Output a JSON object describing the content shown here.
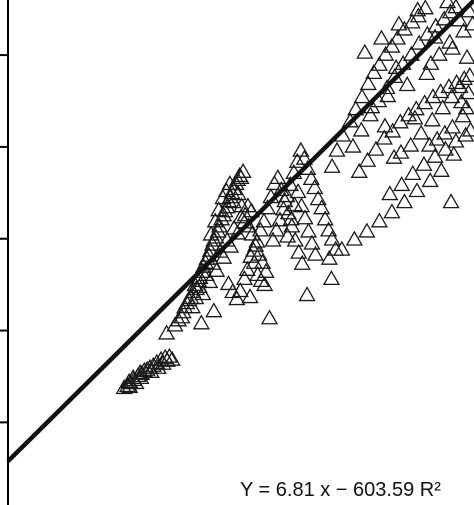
{
  "chart_data": {
    "type": "scatter",
    "marker": "hollow-triangle",
    "colors": {
      "marker": "#1a1a1a",
      "fit_line": "#111111",
      "axis": "#000000"
    },
    "xlim": [
      95,
      162
    ],
    "ylim": [
      0,
      500
    ],
    "axis": {
      "left_spine": true,
      "tick_count": 5,
      "tick_labels_visible": false
    },
    "fit_line": {
      "slope": 6.81,
      "intercept": -603.59
    },
    "equation_text": "Y = 6.81 x − 603.59   R²",
    "series": [
      {
        "points": [
          [
            112.2,
            118
          ],
          [
            112.4,
            122
          ],
          [
            112.5,
            117
          ],
          [
            112.6,
            121
          ],
          [
            113.0,
            126
          ],
          [
            113.1,
            124
          ],
          [
            113.7,
            128
          ],
          [
            114.0,
            131
          ],
          [
            114.1,
            126
          ],
          [
            114.2,
            130
          ],
          [
            114.6,
            133
          ],
          [
            115.0,
            134
          ],
          [
            115.4,
            136
          ],
          [
            115.6,
            132
          ],
          [
            115.9,
            138
          ],
          [
            116.4,
            141
          ],
          [
            116.6,
            136
          ],
          [
            117.0,
            144
          ],
          [
            117.3,
            140
          ],
          [
            117.6,
            146
          ],
          [
            117.9,
            143
          ],
          [
            118.2,
            147
          ],
          [
            118.6,
            144
          ],
          [
            111.7,
            116
          ],
          [
            113.4,
            121
          ],
          [
            117.8,
            170
          ],
          [
            119.0,
            178
          ],
          [
            119.5,
            183
          ],
          [
            120.0,
            186
          ],
          [
            120.2,
            191
          ],
          [
            120.4,
            196
          ],
          [
            120.7,
            200
          ],
          [
            121.0,
            203
          ],
          [
            121.3,
            205
          ],
          [
            121.6,
            211
          ],
          [
            121.9,
            218
          ],
          [
            122.1,
            214
          ],
          [
            122.4,
            222
          ],
          [
            122.6,
            225
          ],
          [
            122.9,
            231
          ],
          [
            123.1,
            236
          ],
          [
            123.4,
            240
          ],
          [
            123.6,
            244
          ],
          [
            123.9,
            247
          ],
          [
            124.1,
            252
          ],
          [
            124.4,
            258
          ],
          [
            124.6,
            262
          ],
          [
            124.9,
            265
          ],
          [
            125.2,
            271
          ],
          [
            125.4,
            276
          ],
          [
            125.7,
            283
          ],
          [
            126.0,
            287
          ],
          [
            126.2,
            291
          ],
          [
            126.5,
            295
          ],
          [
            126.7,
            301
          ],
          [
            127.0,
            305
          ],
          [
            127.2,
            309
          ],
          [
            127.5,
            313
          ],
          [
            127.8,
            318
          ],
          [
            128.0,
            322
          ],
          [
            128.3,
            326
          ],
          [
            128.5,
            324
          ],
          [
            128.8,
            330
          ],
          [
            121.5,
            196
          ],
          [
            122.0,
            205
          ],
          [
            122.5,
            216
          ],
          [
            123.0,
            209
          ],
          [
            123.5,
            228
          ],
          [
            124.0,
            221
          ],
          [
            124.5,
            239
          ],
          [
            125.0,
            232
          ],
          [
            125.5,
            251
          ],
          [
            126.0,
            245
          ],
          [
            126.5,
            262
          ],
          [
            127.0,
            256
          ],
          [
            127.5,
            274
          ],
          [
            128.0,
            269
          ],
          [
            128.5,
            285
          ],
          [
            129.0,
            280
          ],
          [
            129.5,
            296
          ],
          [
            130.0,
            291
          ],
          [
            124.2,
            268
          ],
          [
            124.8,
            281
          ],
          [
            125.3,
            292
          ],
          [
            125.9,
            304
          ],
          [
            126.4,
            311
          ],
          [
            126.9,
            318
          ],
          [
            127.4,
            300
          ],
          [
            128.1,
            308
          ],
          [
            128.6,
            296
          ],
          [
            129.1,
            287
          ],
          [
            129.6,
            276
          ],
          [
            130.1,
            268
          ],
          [
            130.6,
            257
          ],
          [
            131.1,
            248
          ],
          [
            131.6,
            240
          ],
          [
            132.1,
            231
          ],
          [
            130.4,
            240
          ],
          [
            130.9,
            228
          ],
          [
            131.4,
            222
          ],
          [
            131.9,
            218
          ],
          [
            126.7,
            219
          ],
          [
            127.3,
            211
          ],
          [
            127.9,
            204
          ],
          [
            128.4,
            212
          ],
          [
            129.0,
            224
          ],
          [
            129.4,
            233
          ],
          [
            129.9,
            246
          ],
          [
            130.3,
            252
          ],
          [
            130.8,
            261
          ],
          [
            131.3,
            272
          ],
          [
            131.8,
            281
          ],
          [
            132.3,
            294
          ],
          [
            132.8,
            305
          ],
          [
            133.3,
            318
          ],
          [
            133.8,
            324
          ],
          [
            134.3,
            312
          ],
          [
            134.8,
            301
          ],
          [
            135.3,
            289
          ],
          [
            135.8,
            276
          ],
          [
            136.3,
            262
          ],
          [
            136.8,
            250
          ],
          [
            137.3,
            239
          ],
          [
            133.1,
            262
          ],
          [
            133.6,
            272
          ],
          [
            134.1,
            282
          ],
          [
            134.6,
            293
          ],
          [
            135.1,
            306
          ],
          [
            135.6,
            317
          ],
          [
            136.1,
            329
          ],
          [
            136.6,
            340
          ],
          [
            137.1,
            351
          ],
          [
            137.6,
            343
          ],
          [
            138.1,
            333
          ],
          [
            138.6,
            323
          ],
          [
            139.1,
            314
          ],
          [
            139.6,
            303
          ],
          [
            140.1,
            294
          ],
          [
            140.6,
            283
          ],
          [
            141.1,
            272
          ],
          [
            141.6,
            263
          ],
          [
            142.1,
            253
          ],
          [
            135.2,
            266
          ],
          [
            135.7,
            283
          ],
          [
            136.2,
            297
          ],
          [
            136.7,
            310
          ],
          [
            137.2,
            296
          ],
          [
            137.7,
            284
          ],
          [
            138.2,
            271
          ],
          [
            138.7,
            259
          ],
          [
            139.2,
            248
          ],
          [
            129.8,
            206
          ],
          [
            132.6,
            185
          ],
          [
            122.8,
            180
          ],
          [
            124.6,
            192
          ],
          [
            141.6,
            335
          ],
          [
            142.3,
            351
          ],
          [
            143.1,
            366
          ],
          [
            144.2,
            380
          ],
          [
            145.0,
            392
          ],
          [
            145.9,
            404
          ],
          [
            146.8,
            417
          ],
          [
            147.6,
            428
          ],
          [
            148.4,
            436
          ],
          [
            149.3,
            446
          ],
          [
            150.2,
            454
          ],
          [
            151.0,
            462
          ],
          [
            152.0,
            471
          ],
          [
            153.1,
            478
          ],
          [
            154.0,
            484
          ],
          [
            155.0,
            492
          ],
          [
            144.6,
            355
          ],
          [
            145.8,
            371
          ],
          [
            147.1,
            386
          ],
          [
            148.3,
            400
          ],
          [
            149.5,
            413
          ],
          [
            150.6,
            424
          ],
          [
            151.8,
            437
          ],
          [
            153.0,
            446
          ],
          [
            154.1,
            457
          ],
          [
            155.3,
            466
          ],
          [
            156.5,
            474
          ],
          [
            157.7,
            481
          ],
          [
            158.6,
            488
          ],
          [
            159.4,
            493
          ],
          [
            145.5,
            330
          ],
          [
            146.7,
            341
          ],
          [
            147.9,
            352
          ],
          [
            149.1,
            363
          ],
          [
            150.3,
            370
          ],
          [
            151.4,
            379
          ],
          [
            152.6,
            386
          ],
          [
            153.7,
            392
          ],
          [
            154.9,
            398
          ],
          [
            156.1,
            404
          ],
          [
            157.2,
            409
          ],
          [
            158.4,
            414
          ],
          [
            159.5,
            418
          ],
          [
            160.6,
            422
          ],
          [
            155.6,
            356
          ],
          [
            156.7,
            362
          ],
          [
            157.8,
            368
          ],
          [
            158.9,
            374
          ],
          [
            149.9,
            308
          ],
          [
            151.6,
            317
          ],
          [
            153.2,
            328
          ],
          [
            154.8,
            337
          ],
          [
            156.4,
            345
          ],
          [
            157.9,
            352
          ],
          [
            159.4,
            360
          ],
          [
            160.8,
            366
          ],
          [
            161.5,
            371
          ],
          [
            160.2,
            399
          ],
          [
            161.2,
            408
          ],
          [
            160.9,
            393
          ],
          [
            146.3,
            448
          ],
          [
            148.7,
            462
          ],
          [
            151.2,
            476
          ],
          [
            153.9,
            490
          ],
          [
            156.4,
            463
          ],
          [
            158.9,
            452
          ],
          [
            161.0,
            443
          ],
          [
            155.2,
            427
          ],
          [
            152.4,
            416
          ],
          [
            149.6,
            405
          ],
          [
            147.3,
            394
          ],
          [
            150.8,
            433
          ],
          [
            160.4,
            385
          ],
          [
            159.1,
            347
          ],
          [
            157.3,
            331
          ],
          [
            155.7,
            321
          ],
          [
            153.8,
            311
          ],
          [
            152.0,
            300
          ],
          [
            150.2,
            290
          ],
          [
            148.4,
            281
          ],
          [
            146.6,
            271
          ],
          [
            144.8,
            263
          ],
          [
            143.0,
            253
          ],
          [
            141.2,
            244
          ],
          [
            158.2,
            498
          ],
          [
            159.9,
            480
          ],
          [
            161.3,
            489
          ],
          [
            149.2,
            375
          ],
          [
            150.5,
            344
          ],
          [
            152.9,
            356
          ],
          [
            154.4,
            368
          ],
          [
            156.0,
            381
          ],
          [
            157.5,
            393
          ],
          [
            158.8,
            404
          ],
          [
            160.0,
            414
          ],
          [
            161.4,
            425
          ],
          [
            158.7,
            300
          ],
          [
            141.5,
            224
          ],
          [
            138.0,
            208
          ],
          [
            151.5,
            349
          ],
          [
            153.5,
            383
          ],
          [
            155.8,
            437
          ],
          [
            157.0,
            446
          ],
          [
            158.5,
            458
          ],
          [
            160.5,
            469
          ],
          [
            161.8,
            476
          ]
        ]
      }
    ]
  }
}
